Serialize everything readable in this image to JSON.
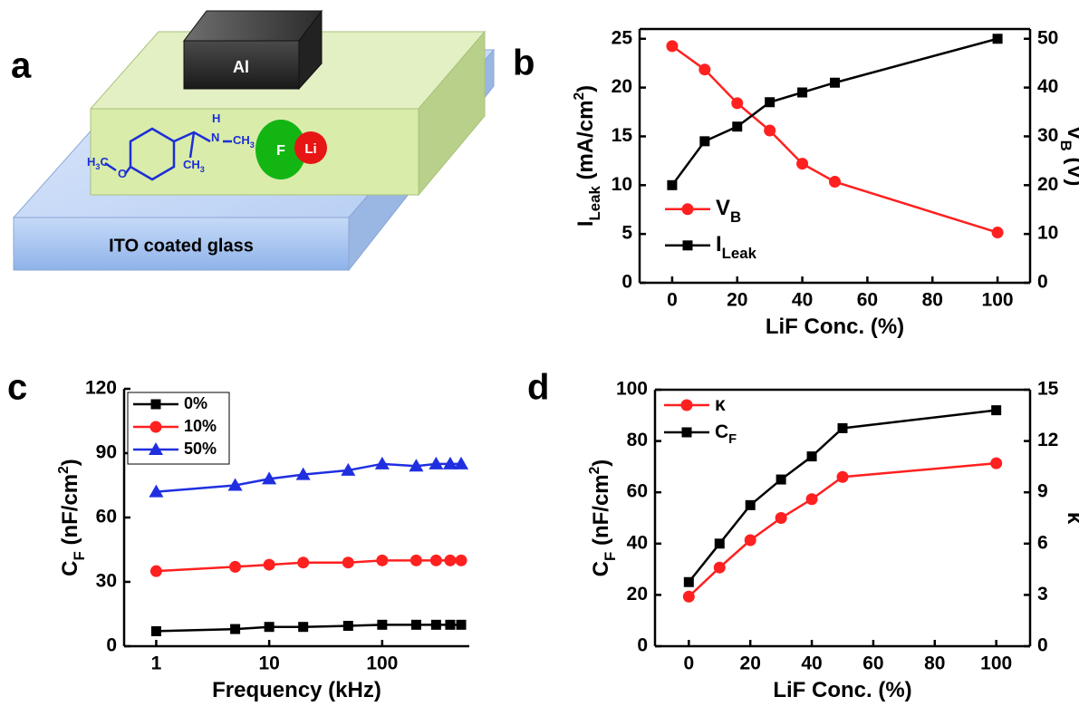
{
  "panel_labels": [
    "a",
    "b",
    "c",
    "d"
  ],
  "diagram": {
    "top_electrode": "Al",
    "substrate": "ITO coated glass",
    "molecule": [
      [
        {
          "text": "H"
        },
        {
          "text": "3",
          "style": "sub"
        },
        {
          "text": "C"
        }
      ],
      [
        {
          "text": "O"
        }
      ],
      [
        {
          "text": "H"
        }
      ],
      [
        {
          "text": "N"
        }
      ],
      [
        {
          "text": "CH"
        },
        {
          "text": "3",
          "style": "sub"
        }
      ],
      [
        {
          "text": "CH"
        },
        {
          "text": "3",
          "style": "sub"
        }
      ]
    ],
    "fluoride": "F",
    "lithium": "Li"
  },
  "chart_data": [
    {
      "type": "line",
      "frame": "box",
      "legend": "center left",
      "xlabel": [
        {
          "text": "LiF Conc. (%)"
        }
      ],
      "ylabel": [
        {
          "text": "I"
        },
        {
          "text": "Leak",
          "style": "sub"
        },
        {
          "text": " (mA/cm"
        },
        {
          "text": "2",
          "style": "sup"
        },
        {
          "text": ")"
        }
      ],
      "y2label": [
        {
          "text": "V"
        },
        {
          "text": "B",
          "style": "sub"
        },
        {
          "text": " (V)"
        }
      ],
      "x": [
        0,
        10,
        20,
        30,
        40,
        50,
        100
      ],
      "xlim": [
        -10,
        110
      ],
      "xticks": [
        0,
        20,
        40,
        60,
        80,
        100
      ],
      "ylim": [
        0,
        26
      ],
      "yticks": [
        0,
        5,
        10,
        15,
        20,
        25
      ],
      "y2lim": [
        0,
        52
      ],
      "y2ticks": [
        0,
        10,
        20,
        30,
        40,
        50
      ],
      "series": [
        {
          "name": [
            {
              "text": "V"
            },
            {
              "text": "B",
              "style": "sub"
            }
          ],
          "color": "#ff2020",
          "marker": "circle",
          "axis": "y2",
          "values": [
            48.5,
            43.7,
            36.8,
            31.2,
            24.4,
            20.7,
            10.3
          ]
        },
        {
          "name": [
            {
              "text": "I"
            },
            {
              "text": "Leak",
              "style": "sub"
            }
          ],
          "color": "#000000",
          "marker": "square",
          "values": [
            10,
            14.5,
            16,
            18.5,
            19.5,
            20.5,
            25
          ]
        }
      ]
    },
    {
      "type": "line",
      "frame": "axes",
      "legend": "upper left",
      "legend_box": true,
      "xscale": "log",
      "xlabel": [
        {
          "text": "Frequency (kHz)"
        }
      ],
      "ylabel": [
        {
          "text": "C"
        },
        {
          "text": "F",
          "style": "sub"
        },
        {
          "text": " (nF/cm"
        },
        {
          "text": "2",
          "style": "sup"
        },
        {
          "text": ")"
        }
      ],
      "x": [
        1,
        5,
        10,
        20,
        50,
        100,
        200,
        300,
        400,
        500
      ],
      "xlim": [
        0.52,
        590
      ],
      "xticks": [
        1,
        10,
        100
      ],
      "ylim": [
        0,
        120
      ],
      "yticks": [
        0,
        30,
        60,
        90,
        120
      ],
      "series": [
        {
          "name": [
            {
              "text": "0%"
            }
          ],
          "color": "#000000",
          "marker": "square",
          "values": [
            7,
            8,
            9,
            9,
            9.5,
            10,
            10,
            10,
            10,
            10
          ]
        },
        {
          "name": [
            {
              "text": "10%"
            }
          ],
          "color": "#ff2020",
          "marker": "circle",
          "values": [
            35,
            37,
            38,
            39,
            39,
            40,
            40,
            40,
            40,
            40
          ]
        },
        {
          "name": [
            {
              "text": "50%"
            }
          ],
          "color": "#1f2fe0",
          "marker": "triangle",
          "values": [
            72,
            75,
            78,
            80,
            82,
            85,
            84,
            85,
            85,
            85
          ]
        }
      ]
    },
    {
      "type": "line",
      "frame": "box",
      "legend": "upper left",
      "xlabel": [
        {
          "text": "LiF Conc. (%)"
        }
      ],
      "ylabel": [
        {
          "text": "C"
        },
        {
          "text": "F",
          "style": "sub"
        },
        {
          "text": " (nF/cm"
        },
        {
          "text": "2",
          "style": "sup"
        },
        {
          "text": ")"
        }
      ],
      "y2label": [
        {
          "text": "κ"
        }
      ],
      "x": [
        0,
        10,
        20,
        30,
        40,
        50,
        100
      ],
      "xlim": [
        -11,
        111
      ],
      "xticks": [
        0,
        20,
        40,
        60,
        80,
        100
      ],
      "ylim": [
        0,
        100
      ],
      "yticks": [
        0,
        20,
        40,
        60,
        80,
        100
      ],
      "y2lim": [
        0,
        15
      ],
      "y2ticks": [
        0,
        3,
        6,
        9,
        12,
        15
      ],
      "series": [
        {
          "name": [
            {
              "text": "κ"
            }
          ],
          "color": "#ff2020",
          "marker": "circle",
          "axis": "y2",
          "values": [
            2.9,
            4.6,
            6.2,
            7.5,
            8.6,
            9.9,
            10.7
          ]
        },
        {
          "name": [
            {
              "text": "C"
            },
            {
              "text": "F",
              "style": "sub"
            }
          ],
          "color": "#000000",
          "marker": "square",
          "values": [
            25,
            40,
            55,
            65,
            74,
            85,
            92
          ]
        }
      ]
    }
  ]
}
